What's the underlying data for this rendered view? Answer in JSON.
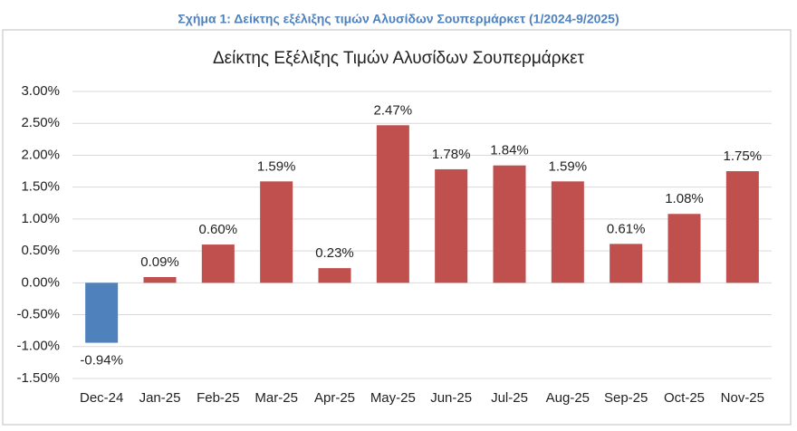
{
  "caption": "Σχήμα 1: Δείκτης εξέλιξης τιμών Αλυσίδων Σουπερμάρκετ (1/2024-9/2025)",
  "chart_data": {
    "type": "bar",
    "title": "Δείκτης Εξέλιξης Τιμών Αλυσίδων Σουπερμάρκετ",
    "categories": [
      "Dec-24",
      "Jan-25",
      "Feb-25",
      "Mar-25",
      "Apr-25",
      "May-25",
      "Jun-25",
      "Jul-25",
      "Aug-25",
      "Sep-25",
      "Oct-25",
      "Nov-25"
    ],
    "values": [
      -0.94,
      0.09,
      0.6,
      1.59,
      0.23,
      2.47,
      1.78,
      1.84,
      1.59,
      0.61,
      1.08,
      1.75
    ],
    "value_labels": [
      "-0.94%",
      "0.09%",
      "0.60%",
      "1.59%",
      "0.23%",
      "2.47%",
      "1.78%",
      "1.84%",
      "1.59%",
      "0.61%",
      "1.08%",
      "1.75%"
    ],
    "color": "#c0504d",
    "negative_color": "#4f81bd",
    "ylim": [
      -1.5,
      3
    ],
    "yticks": [
      {
        "value": -1.5,
        "label": "-1.50%"
      },
      {
        "value": -1,
        "label": "-1.00%"
      },
      {
        "value": -0.5,
        "label": "-0.50%"
      },
      {
        "value": 0,
        "label": "0.00%"
      },
      {
        "value": 0.5,
        "label": "0.50%"
      },
      {
        "value": 1,
        "label": "1.00%"
      },
      {
        "value": 1.5,
        "label": "1.50%"
      },
      {
        "value": 2,
        "label": "2.00%"
      },
      {
        "value": 2.5,
        "label": "2.50%"
      },
      {
        "value": 3,
        "label": "3.00%"
      }
    ],
    "grid": true
  }
}
